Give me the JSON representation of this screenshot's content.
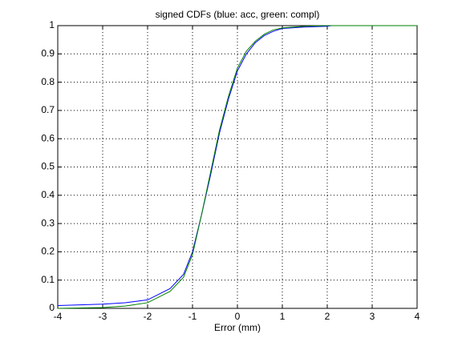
{
  "chart_data": {
    "type": "line",
    "title": "signed CDFs (blue: acc, green: compl)",
    "x_label": "Error (mm)",
    "xlim": [
      -4,
      4
    ],
    "ylim": [
      0,
      1
    ],
    "xticks": [
      -4,
      -3,
      -2,
      -1,
      0,
      1,
      2,
      3,
      4
    ],
    "yticks": [
      0,
      0.1,
      0.2,
      0.3,
      0.4,
      0.5,
      0.6,
      0.7,
      0.8,
      0.9,
      1
    ],
    "grid": true,
    "series": [
      {
        "color": "#0000ff",
        "x": [
          -4,
          -3,
          -2.5,
          -2,
          -1.5,
          -1.2,
          -1,
          -0.8,
          -0.6,
          -0.4,
          -0.2,
          0,
          0.2,
          0.4,
          0.6,
          0.8,
          1,
          1.5,
          2,
          2.1
        ],
        "values": [
          0.01,
          0.015,
          0.02,
          0.03,
          0.07,
          0.12,
          0.2,
          0.33,
          0.47,
          0.62,
          0.74,
          0.84,
          0.9,
          0.94,
          0.965,
          0.98,
          0.99,
          0.995,
          0.998,
          1
        ]
      },
      {
        "color": "#008000",
        "x": [
          -4,
          -3,
          -2.5,
          -2,
          -1.5,
          -1.2,
          -1,
          -0.8,
          -0.6,
          -0.4,
          -0.2,
          0,
          0.2,
          0.4,
          0.6,
          0.8,
          1,
          1.5,
          2,
          4
        ],
        "values": [
          0,
          0.003,
          0.008,
          0.02,
          0.06,
          0.11,
          0.19,
          0.33,
          0.48,
          0.63,
          0.75,
          0.85,
          0.91,
          0.945,
          0.97,
          0.985,
          0.992,
          0.998,
          1,
          1
        ]
      }
    ]
  }
}
